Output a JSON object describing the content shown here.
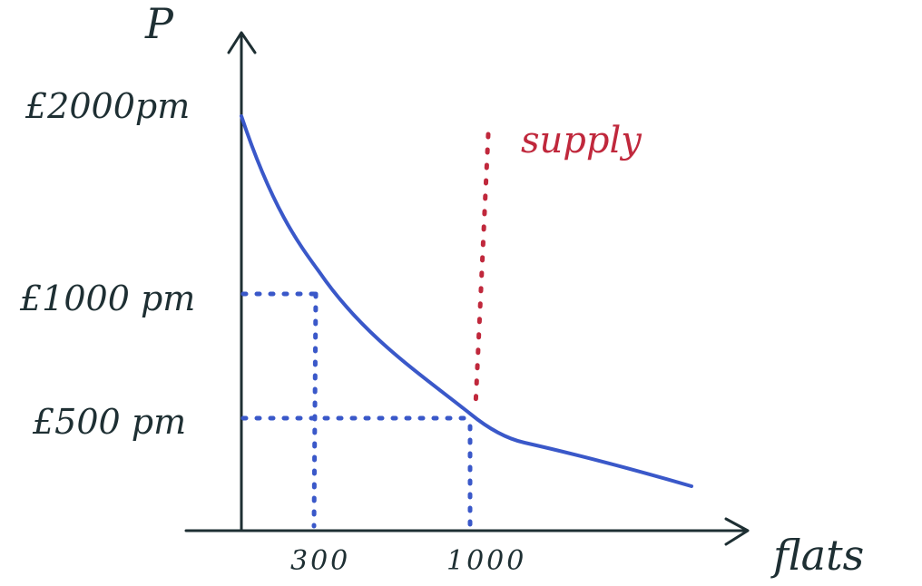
{
  "chart_data": {
    "type": "line",
    "y_axis_label": "P",
    "x_axis_label": "flats",
    "y_ticks": [
      {
        "label": "£2000pm",
        "value": 2000
      },
      {
        "label": "£1000 pm",
        "value": 1000
      },
      {
        "label": "£500 pm",
        "value": 500
      }
    ],
    "x_ticks": [
      {
        "label": "300",
        "value": 300
      },
      {
        "label": "1000",
        "value": 1000
      }
    ],
    "series": [
      {
        "kind": "demand",
        "color": "#3a58c9",
        "points": [
          [
            0,
            2000
          ],
          [
            300,
            1000
          ],
          [
            1000,
            500
          ],
          [
            1500,
            250
          ]
        ]
      },
      {
        "name": "supply",
        "kind": "supply",
        "color": "#c0283c",
        "style": "dotted",
        "x": 1000
      }
    ],
    "reference_lines": [
      {
        "x": 300,
        "y": 1000,
        "color": "#3a58c9",
        "style": "dotted"
      },
      {
        "x": 1000,
        "y": 500,
        "color": "#3a58c9",
        "style": "dotted"
      }
    ]
  }
}
